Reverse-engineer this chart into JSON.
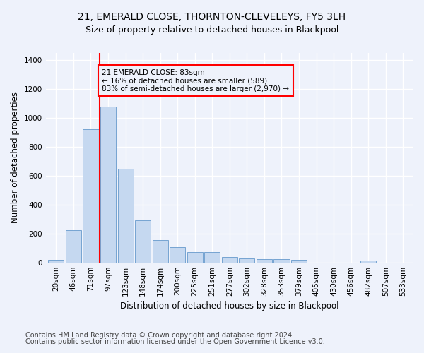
{
  "title1": "21, EMERALD CLOSE, THORNTON-CLEVELEYS, FY5 3LH",
  "title2": "Size of property relative to detached houses in Blackpool",
  "xlabel": "Distribution of detached houses by size in Blackpool",
  "ylabel": "Number of detached properties",
  "bar_labels": [
    "20sqm",
    "46sqm",
    "71sqm",
    "97sqm",
    "123sqm",
    "148sqm",
    "174sqm",
    "200sqm",
    "225sqm",
    "251sqm",
    "277sqm",
    "302sqm",
    "328sqm",
    "353sqm",
    "379sqm",
    "405sqm",
    "430sqm",
    "456sqm",
    "482sqm",
    "507sqm",
    "533sqm"
  ],
  "bar_values": [
    18,
    225,
    920,
    1080,
    650,
    290,
    155,
    105,
    70,
    70,
    38,
    28,
    22,
    22,
    20,
    0,
    0,
    0,
    12,
    0,
    0
  ],
  "bar_color": "#c5d8f0",
  "bar_edgecolor": "#6699cc",
  "vline_color": "red",
  "annotation_text": "21 EMERALD CLOSE: 83sqm\n← 16% of detached houses are smaller (589)\n83% of semi-detached houses are larger (2,970) →",
  "annotation_box_edgecolor": "red",
  "ylim": [
    0,
    1450
  ],
  "yticks": [
    0,
    200,
    400,
    600,
    800,
    1000,
    1200,
    1400
  ],
  "footer1": "Contains HM Land Registry data © Crown copyright and database right 2024.",
  "footer2": "Contains public sector information licensed under the Open Government Licence v3.0.",
  "bg_color": "#eef2fb",
  "plot_bg_color": "#eef2fb",
  "grid_color": "#ffffff",
  "title_fontsize": 10,
  "subtitle_fontsize": 9,
  "axis_label_fontsize": 8.5,
  "tick_fontsize": 7.5,
  "footer_fontsize": 7
}
